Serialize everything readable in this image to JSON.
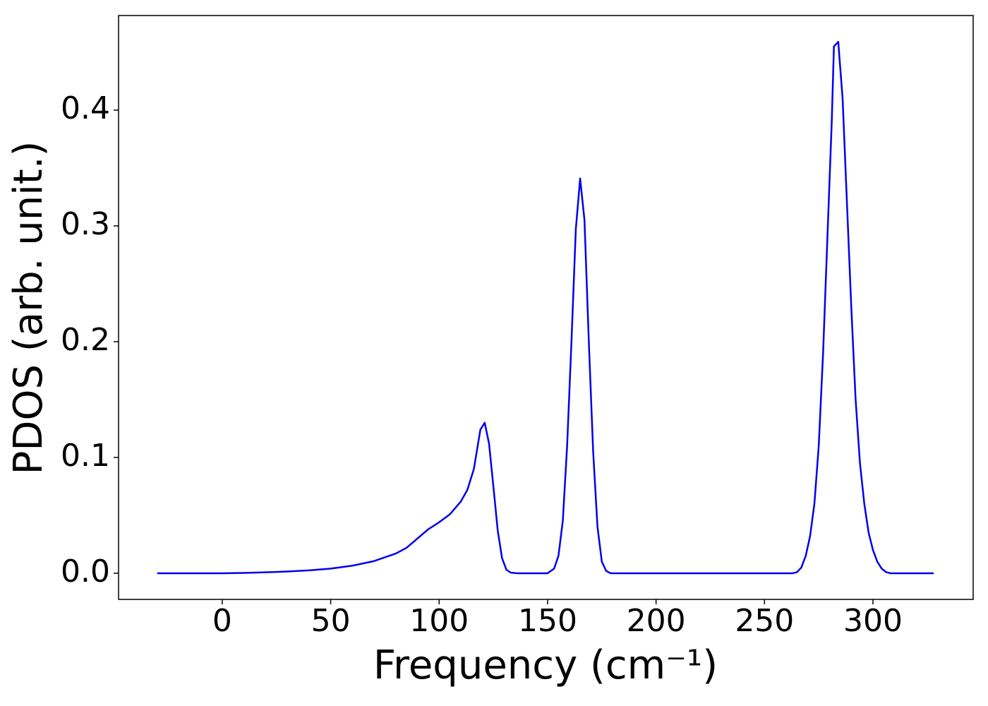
{
  "chart_data": {
    "type": "line",
    "x_label": "Frequency (cm⁻¹)",
    "y_label": "PDOS (arb. unit.)",
    "xlim": [
      -47.8,
      346.2
    ],
    "ylim": [
      -0.0226,
      0.4817
    ],
    "xticks": [
      0,
      50,
      100,
      150,
      200,
      250,
      300
    ],
    "yticks": [
      {
        "value": 0,
        "label": "0.0"
      },
      0.1,
      0.2,
      0.3,
      0.4
    ],
    "series": [
      {
        "color": "#0000ee",
        "x": [
          -30,
          0,
          10,
          20,
          30,
          40,
          50,
          60,
          70,
          80,
          85,
          90,
          95,
          100,
          105,
          110,
          113,
          116,
          119,
          121,
          123,
          125,
          127,
          129,
          131,
          133,
          136,
          150,
          153,
          155,
          157,
          159,
          161,
          163,
          165,
          167,
          169,
          171,
          173,
          175,
          177,
          179,
          263,
          265,
          267,
          269,
          271,
          273,
          275,
          277,
          279,
          281,
          282,
          284,
          286,
          288,
          290,
          292,
          294,
          296,
          298,
          300,
          302,
          304,
          306,
          308,
          328
        ],
        "values": [
          0,
          0,
          0.0003,
          0.0008,
          0.0015,
          0.0025,
          0.004,
          0.0065,
          0.0105,
          0.017,
          0.022,
          0.03,
          0.038,
          0.044,
          0.051,
          0.062,
          0.072,
          0.09,
          0.124,
          0.13,
          0.112,
          0.075,
          0.037,
          0.013,
          0.003,
          0.0005,
          0,
          0,
          0.004,
          0.015,
          0.045,
          0.11,
          0.2,
          0.297,
          0.341,
          0.305,
          0.2,
          0.105,
          0.04,
          0.01,
          0.002,
          0,
          0,
          0.001,
          0.005,
          0.015,
          0.032,
          0.06,
          0.11,
          0.19,
          0.29,
          0.39,
          0.455,
          0.459,
          0.41,
          0.32,
          0.23,
          0.15,
          0.095,
          0.06,
          0.035,
          0.02,
          0.01,
          0.004,
          0.001,
          0,
          0
        ]
      }
    ]
  }
}
